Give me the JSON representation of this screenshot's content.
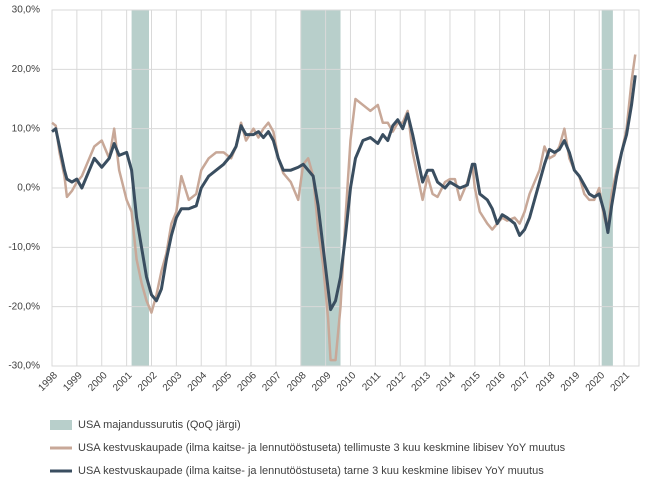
{
  "chart_data": {
    "type": "line",
    "x": [
      1998.0,
      1998.15,
      1998.3,
      1998.5,
      1998.6,
      1998.8,
      1999.0,
      1999.2,
      1999.5,
      1999.7,
      2000.0,
      2000.3,
      2000.5,
      2000.7,
      2001.0,
      2001.2,
      2001.4,
      2001.6,
      2001.8,
      2002.0,
      2002.2,
      2002.4,
      2002.6,
      2002.8,
      2003.0,
      2003.2,
      2003.5,
      2003.8,
      2004.0,
      2004.3,
      2004.6,
      2004.9,
      2005.2,
      2005.4,
      2005.6,
      2005.8,
      2006.1,
      2006.3,
      2006.5,
      2006.7,
      2006.9,
      2007.1,
      2007.3,
      2007.6,
      2007.9,
      2008.1,
      2008.3,
      2008.5,
      2008.7,
      2008.9,
      2009.1,
      2009.2,
      2009.4,
      2009.6,
      2009.8,
      2010.0,
      2010.2,
      2010.5,
      2010.8,
      2011.1,
      2011.3,
      2011.5,
      2011.7,
      2011.9,
      2012.1,
      2012.3,
      2012.5,
      2012.7,
      2012.9,
      2013.1,
      2013.3,
      2013.5,
      2013.8,
      2014.0,
      2014.2,
      2014.4,
      2014.7,
      2014.9,
      2015.0,
      2015.2,
      2015.5,
      2015.7,
      2015.9,
      2016.1,
      2016.3,
      2016.6,
      2016.8,
      2017.0,
      2017.2,
      2017.4,
      2017.6,
      2017.8,
      2018.0,
      2018.2,
      2018.4,
      2018.6,
      2018.8,
      2019.0,
      2019.2,
      2019.4,
      2019.6,
      2019.8,
      2020.0,
      2020.2,
      2020.35,
      2020.5,
      2020.7,
      2020.9,
      2021.1,
      2021.3,
      2021.45
    ],
    "series": [
      {
        "name": "USA kestvuskaupade (ilma kaitse- ja lennutööstuseta) tellimuste 3 kuu keskmine libisev YoY muutus",
        "color": "#c8a898",
        "values": [
          11,
          10.5,
          6,
          2,
          -1.5,
          -0.5,
          1,
          2,
          5,
          7,
          8,
          5,
          10,
          3,
          -2,
          -4,
          -12,
          -16,
          -19,
          -21,
          -18,
          -14,
          -11,
          -6,
          -4,
          2,
          -2,
          -1,
          3,
          5,
          6,
          6,
          5,
          7,
          11,
          8,
          10,
          8.5,
          10,
          11,
          9.5,
          5,
          2.5,
          1,
          -2,
          4,
          5,
          2,
          -7,
          -13,
          -22,
          -29,
          -29,
          -20,
          -5,
          8,
          15,
          14,
          13,
          14,
          11,
          11,
          9.5,
          11,
          11,
          13,
          6,
          2,
          -2,
          2,
          -1,
          -1.5,
          1,
          1.5,
          1.5,
          -2,
          1,
          4,
          0,
          -4,
          -6,
          -7,
          -6,
          -5,
          -5.5,
          -5,
          -6,
          -4,
          -1,
          1,
          3,
          7,
          5,
          5.5,
          7,
          10,
          5,
          3,
          2,
          -1,
          -2,
          -2,
          0,
          -5,
          -7,
          -1,
          3,
          6,
          10,
          18,
          22.5
        ]
      },
      {
        "name": "USA kestvuskaupade (ilma kaitse- ja lennutööstuseta) tarne 3 kuu keskmine libisev YoY muutus",
        "color": "#3a4e60",
        "values": [
          9.5,
          10,
          7,
          3,
          1.5,
          1,
          1.5,
          0,
          3,
          5,
          3.5,
          5,
          7.5,
          5.5,
          6,
          3,
          -5,
          -10,
          -15,
          -18,
          -19,
          -17,
          -12,
          -8,
          -5,
          -3.5,
          -3.5,
          -3,
          0,
          2,
          3,
          4,
          5.5,
          7,
          10.5,
          9,
          9,
          9.5,
          8.5,
          9.5,
          8,
          5,
          3,
          3,
          3.5,
          4,
          3,
          2,
          -3,
          -10,
          -17,
          -20.5,
          -19,
          -15,
          -8,
          0,
          5,
          8,
          8.5,
          7.5,
          9,
          8,
          10.5,
          11.5,
          10,
          12.5,
          9,
          5,
          1,
          3,
          3,
          1,
          0,
          1,
          0.5,
          0,
          0.5,
          4,
          4,
          -1,
          -2,
          -3.5,
          -6,
          -4.5,
          -5,
          -6,
          -8,
          -7,
          -5,
          -2,
          1,
          4,
          6.5,
          6,
          6.5,
          8,
          6,
          3,
          2,
          0.5,
          -1,
          -1.5,
          -1,
          -4,
          -7.5,
          -3,
          2,
          6,
          9,
          14,
          19
        ]
      }
    ],
    "recessions": {
      "name": "USA majandussurutis (QoQ järgi)",
      "color": "#b8cfcb",
      "periods": [
        [
          2001.2,
          2001.9
        ],
        [
          2008.0,
          2009.6
        ],
        [
          2020.1,
          2020.55
        ]
      ]
    },
    "xlim": [
      1998,
      2021.6
    ],
    "xticks": [
      1998,
      1999,
      2000,
      2001,
      2002,
      2003,
      2004,
      2005,
      2006,
      2007,
      2008,
      2009,
      2010,
      2011,
      2012,
      2013,
      2014,
      2015,
      2016,
      2017,
      2018,
      2019,
      2020,
      2021
    ],
    "ylim": [
      -30,
      30
    ],
    "yticks": [
      {
        "value": -30,
        "label": "-30,0%"
      },
      {
        "value": -20,
        "label": "-20,0%"
      },
      {
        "value": -10,
        "label": "-10,0%"
      },
      {
        "value": 0,
        "label": "0,0%"
      },
      {
        "value": 10,
        "label": "10,0%"
      },
      {
        "value": 20,
        "label": "20,0%"
      },
      {
        "value": 30,
        "label": "30,0%"
      }
    ],
    "grid": true
  }
}
